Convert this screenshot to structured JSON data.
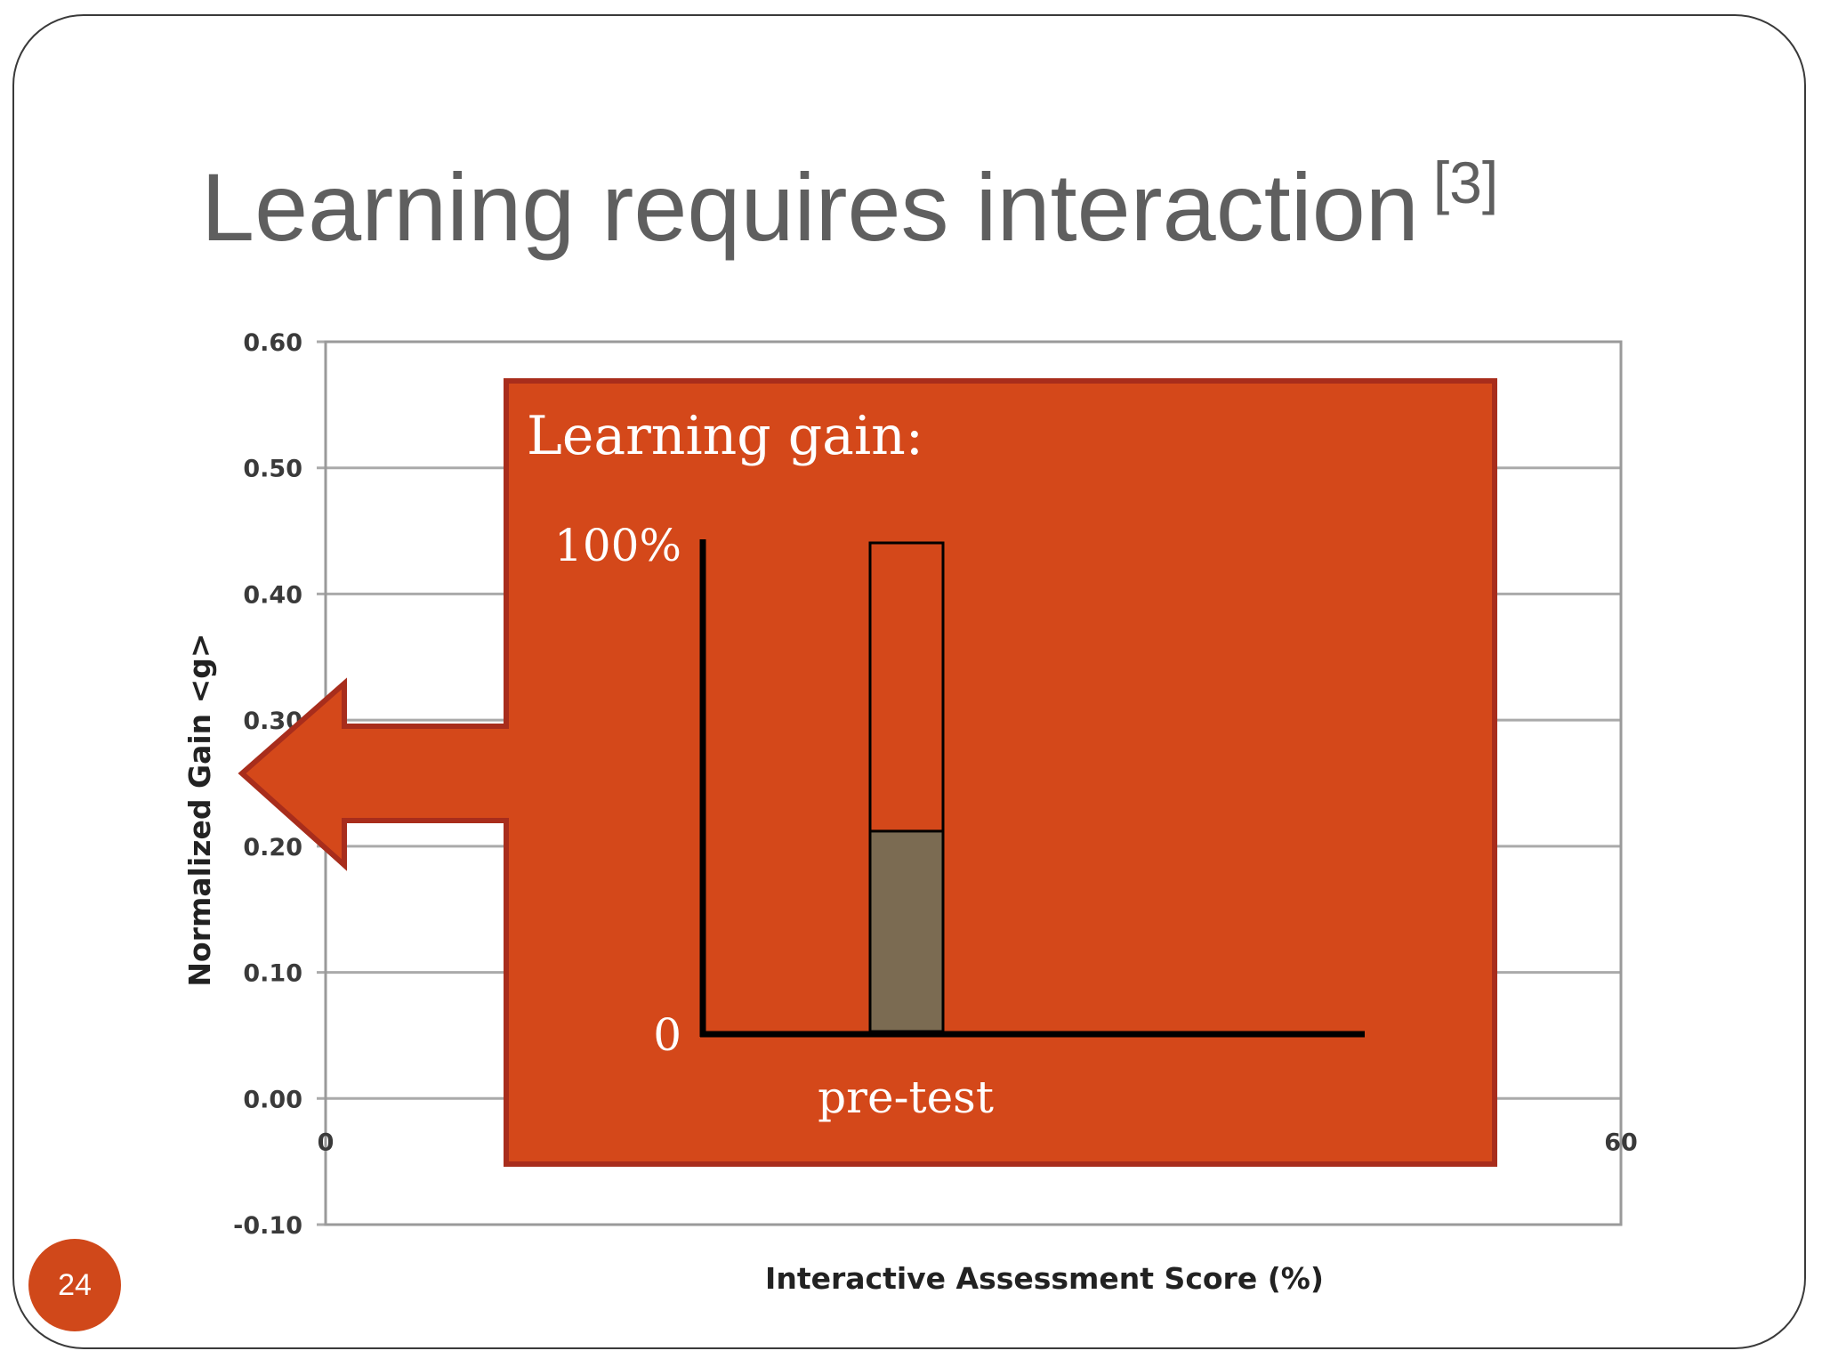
{
  "slide": {
    "title": "Learning requires interaction",
    "citation": "[3]",
    "number": "24"
  },
  "colors": {
    "overlay": "#d4481a",
    "overlay_border": "#a82d1c",
    "pretest_bar": "#7b6b52",
    "grid": "#aaaaaa"
  },
  "chart_data": {
    "type": "scatter",
    "xlabel": "Interactive Assessment Score (%)",
    "ylabel": "Normalized Gain <g>",
    "xlim": [
      0,
      60
    ],
    "ylim": [
      -0.1,
      0.6
    ],
    "x_ticks": [
      "0",
      "60"
    ],
    "y_ticks": [
      "0.60",
      "0.50",
      "0.40",
      "0.30",
      "0.20",
      "0.10",
      "0.00",
      "-0.10"
    ],
    "grid": true,
    "overlay": {
      "title": "Learning gain:",
      "top_label": "100%",
      "bottom_label": "0",
      "bar_label": "pre-test",
      "pretest_fraction": 0.41
    }
  }
}
